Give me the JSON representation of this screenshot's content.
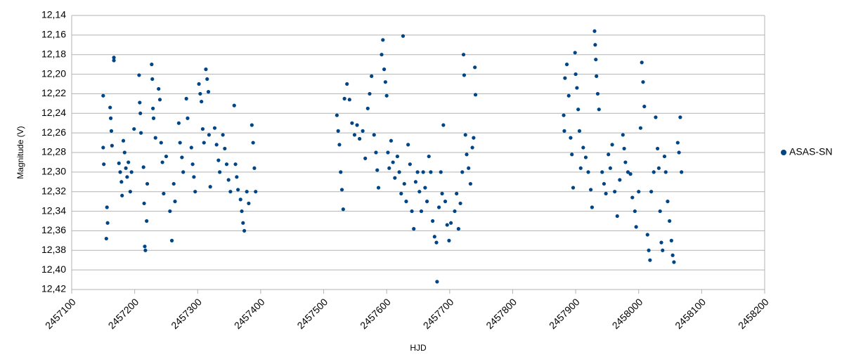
{
  "chart_data": {
    "type": "scatter",
    "x_label": "HJD",
    "y_label": "Magnitude (V)",
    "xlim": [
      2457100,
      2458200
    ],
    "xticks": [
      2457100,
      2457200,
      2457300,
      2457400,
      2457500,
      2457600,
      2457700,
      2457800,
      2457900,
      2458000,
      2458100,
      2458200
    ],
    "ylim": [
      12.14,
      12.42
    ],
    "y_inverted": true,
    "yticks": [
      {
        "value": 12.14,
        "label": "12,14"
      },
      {
        "value": 12.16,
        "label": "12,16"
      },
      {
        "value": 12.18,
        "label": "12,18"
      },
      {
        "value": 12.2,
        "label": "12,20"
      },
      {
        "value": 12.22,
        "label": "12,22"
      },
      {
        "value": 12.24,
        "label": "12,24"
      },
      {
        "value": 12.26,
        "label": "12,26"
      },
      {
        "value": 12.28,
        "label": "12,28"
      },
      {
        "value": 12.3,
        "label": "12,30"
      },
      {
        "value": 12.32,
        "label": "12,32"
      },
      {
        "value": 12.34,
        "label": "12,34"
      },
      {
        "value": 12.36,
        "label": "12,36"
      },
      {
        "value": 12.38,
        "label": "12,38"
      },
      {
        "value": 12.4,
        "label": "12,40"
      },
      {
        "value": 12.42,
        "label": "12,42"
      }
    ],
    "grid": true,
    "legend": "right",
    "series": [
      {
        "name": "ASAS-SN",
        "color": "#004586",
        "x": [
          2457150,
          2457150,
          2457151,
          2457156,
          2457157,
          2457155,
          2457161,
          2457162,
          2457163,
          2457164,
          2457167,
          2457167,
          2457175,
          2457177,
          2457179,
          2457180,
          2457182,
          2457184,
          2457186,
          2457188,
          2457190,
          2457193,
          2457195,
          2457199,
          2457207,
          2457208,
          2457209,
          2457210,
          2457214,
          2457215,
          2457216,
          2457217,
          2457219,
          2457220,
          2457227,
          2457228,
          2457229,
          2457230,
          2457233,
          2457238,
          2457240,
          2457242,
          2457244,
          2457246,
          2457250,
          2457256,
          2457259,
          2457262,
          2457264,
          2457270,
          2457272,
          2457275,
          2457277,
          2457282,
          2457284,
          2457290,
          2457292,
          2457294,
          2457296,
          2457302,
          2457304,
          2457306,
          2457308,
          2457310,
          2457313,
          2457315,
          2457317,
          2457318,
          2457320,
          2457327,
          2457330,
          2457333,
          2457335,
          2457340,
          2457343,
          2457346,
          2457349,
          2457352,
          2457358,
          2457360,
          2457362,
          2457364,
          2457368,
          2457370,
          2457372,
          2457374,
          2457378,
          2457381,
          2457386,
          2457388,
          2457390,
          2457392,
          2457521,
          2457523,
          2457525,
          2457527,
          2457529,
          2457531,
          2457533,
          2457537,
          2457541,
          2457545,
          2457549,
          2457553,
          2457557,
          2457562,
          2457566,
          2457570,
          2457573,
          2457576,
          2457580,
          2457583,
          2457585,
          2457587,
          2457592,
          2457594,
          2457596,
          2457598,
          2457600,
          2457602,
          2457604,
          2457607,
          2457610,
          2457613,
          2457617,
          2457620,
          2457623,
          2457626,
          2457628,
          2457631,
          2457634,
          2457637,
          2457640,
          2457643,
          2457646,
          2457649,
          2457652,
          2457655,
          2457658,
          2457661,
          2457664,
          2457667,
          2457670,
          2457673,
          2457676,
          2457679,
          2457680,
          2457683,
          2457686,
          2457688,
          2457690,
          2457693,
          2457696,
          2457699,
          2457702,
          2457708,
          2457711,
          2457714,
          2457717,
          2457720,
          2457722,
          2457723,
          2457725,
          2457727,
          2457730,
          2457733,
          2457736,
          2457738,
          2457740,
          2457741,
          2457881,
          2457882,
          2457883,
          2457886,
          2457889,
          2457892,
          2457894,
          2457896,
          2457899,
          2457900,
          2457902,
          2457904,
          2457906,
          2457908,
          2457912,
          2457916,
          2457920,
          2457924,
          2457926,
          2457930,
          2457931,
          2457932,
          2457933,
          2457935,
          2457937,
          2457942,
          2457945,
          2457948,
          2457952,
          2457955,
          2457958,
          2457962,
          2457966,
          2457970,
          2457975,
          2457977,
          2457979,
          2457983,
          2457987,
          2457990,
          2457994,
          2457996,
          2458000,
          2458003,
          2458005,
          2458007,
          2458009,
          2458014,
          2458016,
          2458018,
          2458020,
          2458024,
          2458027,
          2458030,
          2458032,
          2458034,
          2458036,
          2458038,
          2458041,
          2458043,
          2458046,
          2458049,
          2458052,
          2458054,
          2458056,
          2458062,
          2458064,
          2458066,
          2458068
        ],
        "values": [
          12.222,
          12.275,
          12.292,
          12.336,
          12.352,
          12.368,
          12.234,
          12.245,
          12.258,
          12.273,
          12.183,
          12.186,
          12.291,
          12.3,
          12.31,
          12.324,
          12.268,
          12.28,
          12.296,
          12.305,
          12.29,
          12.32,
          12.3,
          12.256,
          12.201,
          12.229,
          12.24,
          12.26,
          12.295,
          12.332,
          12.376,
          12.38,
          12.35,
          12.312,
          12.19,
          12.205,
          12.235,
          12.245,
          12.265,
          12.215,
          12.226,
          12.27,
          12.29,
          12.322,
          12.284,
          12.34,
          12.37,
          12.312,
          12.33,
          12.25,
          12.27,
          12.285,
          12.3,
          12.225,
          12.245,
          12.275,
          12.292,
          12.305,
          12.32,
          12.21,
          12.22,
          12.228,
          12.256,
          12.27,
          12.195,
          12.205,
          12.218,
          12.262,
          12.315,
          12.255,
          12.272,
          12.288,
          12.3,
          12.262,
          12.276,
          12.292,
          12.308,
          12.32,
          12.232,
          12.292,
          12.305,
          12.318,
          12.328,
          12.34,
          12.352,
          12.36,
          12.32,
          12.332,
          12.252,
          12.27,
          12.296,
          12.32,
          12.242,
          12.258,
          12.272,
          12.3,
          12.318,
          12.338,
          12.225,
          12.21,
          12.226,
          12.25,
          12.262,
          12.252,
          12.266,
          12.258,
          12.286,
          12.235,
          12.22,
          12.202,
          12.262,
          12.28,
          12.298,
          12.316,
          12.18,
          12.165,
          12.195,
          12.208,
          12.222,
          12.28,
          12.296,
          12.268,
          12.29,
          12.306,
          12.284,
          12.3,
          12.322,
          12.161,
          12.312,
          12.33,
          12.272,
          12.292,
          12.34,
          12.358,
          12.31,
          12.3,
          12.32,
          12.34,
          12.3,
          12.316,
          12.33,
          12.284,
          12.3,
          12.35,
          12.366,
          12.372,
          12.412,
          12.336,
          12.3,
          12.322,
          12.252,
          12.33,
          12.354,
          12.37,
          12.352,
          12.34,
          12.322,
          12.358,
          12.332,
          12.3,
          12.18,
          12.201,
          12.262,
          12.282,
          12.296,
          12.312,
          12.275,
          12.265,
          12.193,
          12.221,
          12.242,
          12.258,
          12.204,
          12.19,
          12.222,
          12.265,
          12.282,
          12.316,
          12.178,
          12.2,
          12.214,
          12.236,
          12.258,
          12.296,
          12.275,
          12.285,
          12.3,
          12.318,
          12.336,
          12.156,
          12.17,
          12.185,
          12.202,
          12.22,
          12.236,
          12.3,
          12.312,
          12.322,
          12.282,
          12.296,
          12.272,
          12.32,
          12.345,
          12.308,
          12.262,
          12.276,
          12.29,
          12.3,
          12.302,
          12.326,
          12.34,
          12.356,
          12.32,
          12.255,
          12.188,
          12.208,
          12.233,
          12.364,
          12.38,
          12.39,
          12.32,
          12.3,
          12.244,
          12.276,
          12.296,
          12.34,
          12.372,
          12.38,
          12.284,
          12.3,
          12.33,
          12.35,
          12.37,
          12.385,
          12.392,
          12.27,
          12.28,
          12.244,
          12.3
        ]
      }
    ]
  }
}
